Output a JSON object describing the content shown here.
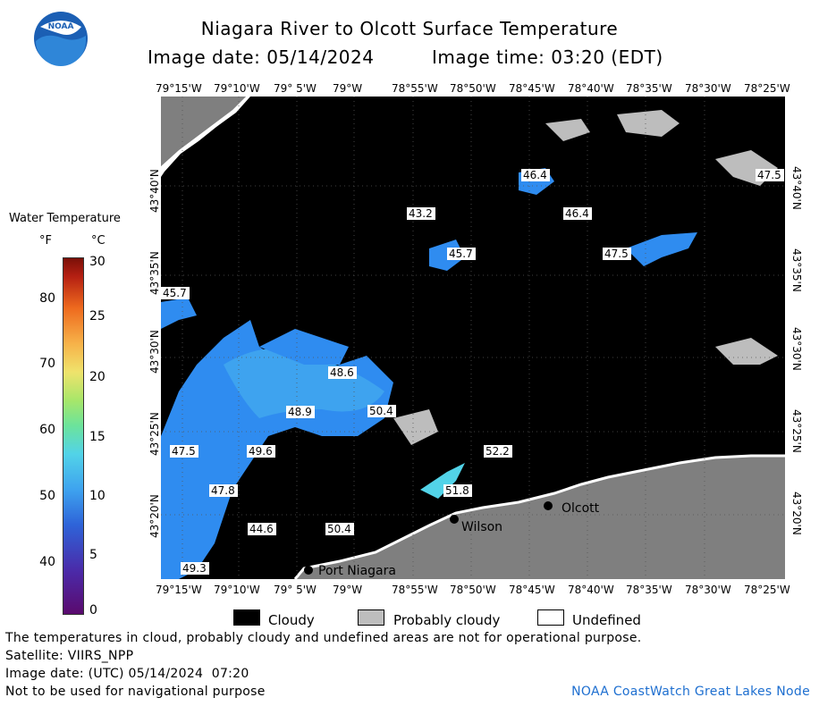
{
  "header": {
    "title": "Niagara River to Olcott Surface Temperature",
    "image_date": "Image date: 05/14/2024",
    "image_time": "Image time: 03:20 (EDT)"
  },
  "logo": {
    "text": "NOAA"
  },
  "axes": {
    "longitudes": [
      "79°15'W",
      "79°10'W",
      "79° 5'W",
      "79°W",
      "78°55'W",
      "78°50'W",
      "78°45'W",
      "78°40'W",
      "78°35'W",
      "78°30'W",
      "78°25'W"
    ],
    "latitudes": [
      "43°40'N",
      "43°35'N",
      "43°30'N",
      "43°25'N",
      "43°20'N"
    ]
  },
  "map": {
    "places": [
      {
        "name": "Olcott"
      },
      {
        "name": "Wilson"
      },
      {
        "name": "Port Niagara"
      }
    ],
    "temp_labels": [
      "46.4",
      "43.2",
      "46.4",
      "45.7",
      "47.5",
      "47.5",
      "45.7",
      "48.6",
      "48.9",
      "50.4",
      "49.6",
      "47.5",
      "52.2",
      "51.8",
      "47.8",
      "44.6",
      "50.4",
      "49.3"
    ],
    "colors": {
      "cloud": "#000000",
      "probably_cloudy": "#bdbdbd",
      "land": "#7f7f7f",
      "water_cold": "#2f8cf0",
      "water_warm": "#5ed8f2",
      "undefined": "#ffffff"
    }
  },
  "legend": {
    "title": "Water Temperature",
    "unit_f": "°F",
    "unit_c": "°C",
    "f_ticks": [
      "80",
      "70",
      "60",
      "50",
      "40"
    ],
    "c_ticks": [
      "30",
      "25",
      "20",
      "15",
      "10",
      "5",
      "0"
    ],
    "categories": [
      {
        "label": "Cloudy",
        "color": "#000000"
      },
      {
        "label": "Probably cloudy",
        "color": "#bdbdbd"
      },
      {
        "label": "Undefined",
        "color": "#ffffff"
      }
    ]
  },
  "footer": {
    "disclaimer": "The temperatures in cloud, probably cloudy and undefined areas are not for operational purpose.",
    "satellite": "Satellite: VIIRS_NPP",
    "utc_date": "Image date: (UTC) 05/14/2024  07:20",
    "navigation": "Not to be used for navigational purpose",
    "credit": "NOAA CoastWatch Great Lakes Node"
  }
}
